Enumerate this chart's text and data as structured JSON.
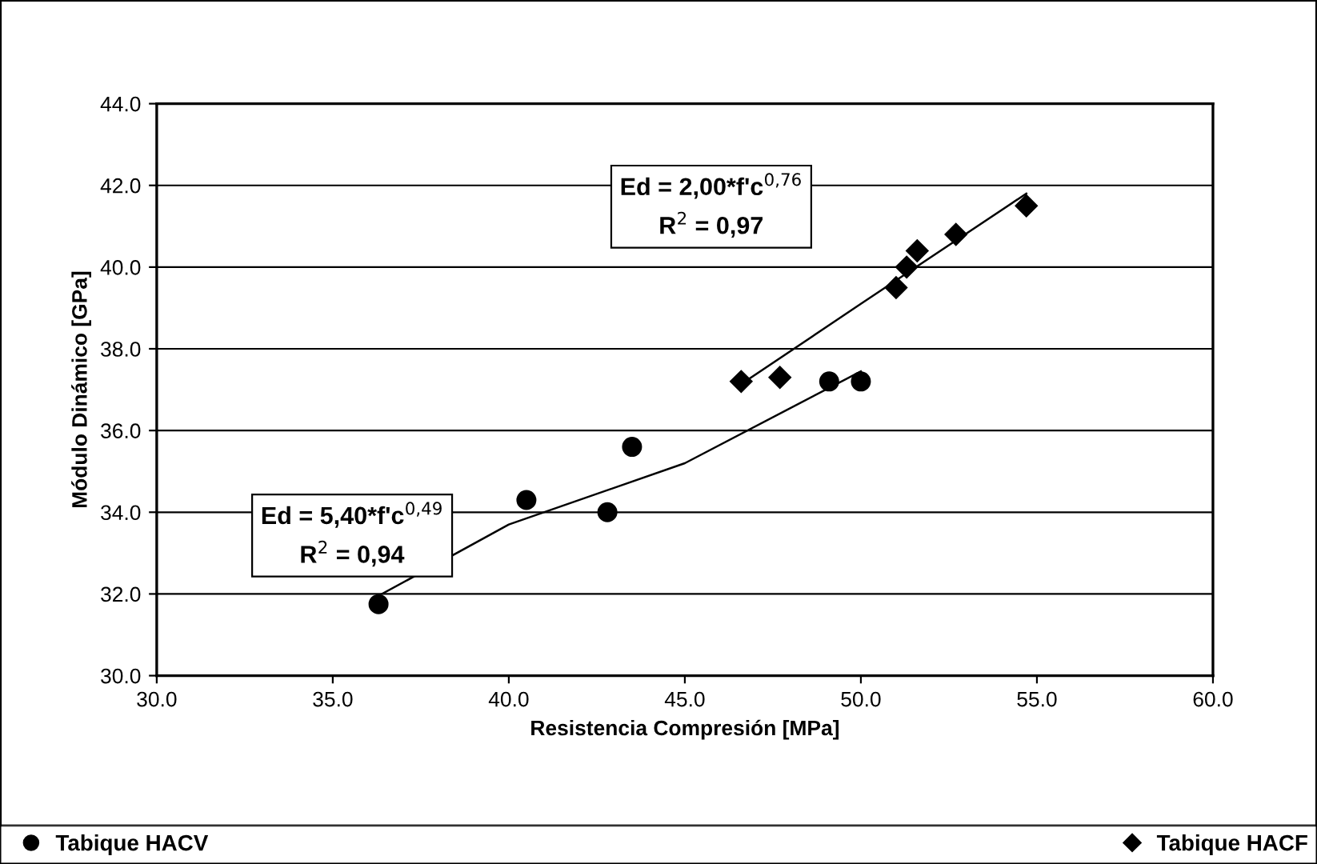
{
  "chart_data": {
    "type": "scatter",
    "xlabel": "Resistencia Compresión [MPa]",
    "ylabel": "Módulo Dinámico [GPa]",
    "xlim": [
      30,
      60
    ],
    "ylim": [
      30,
      44
    ],
    "xticks": [
      {
        "value": 30,
        "label": "30.0"
      },
      {
        "value": 35,
        "label": "35.0"
      },
      {
        "value": 40,
        "label": "40.0"
      },
      {
        "value": 45,
        "label": "45.0"
      },
      {
        "value": 50,
        "label": "50.0"
      },
      {
        "value": 55,
        "label": "55.0"
      },
      {
        "value": 60,
        "label": "60.0"
      }
    ],
    "yticks": [
      {
        "value": 30,
        "label": "30.0"
      },
      {
        "value": 32,
        "label": "32.0"
      },
      {
        "value": 34,
        "label": "34.0"
      },
      {
        "value": 36,
        "label": "36.0"
      },
      {
        "value": 38,
        "label": "38.0"
      },
      {
        "value": 40,
        "label": "40.0"
      },
      {
        "value": 42,
        "label": "42.0"
      },
      {
        "value": 44,
        "label": "44.0"
      }
    ],
    "grid": "y",
    "legend": "bottom",
    "series": [
      {
        "name": "Tabique HACV",
        "marker": "circle",
        "color": "#000000",
        "x": [
          36.3,
          40.5,
          42.8,
          43.5,
          49.1,
          50.0
        ],
        "values": [
          31.75,
          34.3,
          34.0,
          35.6,
          37.2,
          37.2
        ]
      },
      {
        "name": "Tabique HACF",
        "marker": "diamond",
        "color": "#000000",
        "x": [
          46.6,
          47.7,
          51.0,
          51.3,
          51.6,
          52.7,
          54.7
        ],
        "values": [
          37.2,
          37.3,
          39.5,
          40.0,
          40.4,
          40.8,
          41.5
        ]
      },
      {
        "type": "line",
        "marker": "none",
        "color": "#000000",
        "x": [
          36.4,
          40.0,
          45.0,
          50.0
        ],
        "values": [
          32.0,
          33.7,
          35.2,
          37.45
        ]
      },
      {
        "type": "line",
        "marker": "none",
        "color": "#000000",
        "x": [
          46.8,
          50.0,
          54.7
        ],
        "values": [
          37.25,
          39.1,
          41.8
        ]
      }
    ],
    "annotations": [
      "Ed = 5,40*f'c$^{0,49}$\nR$^{2}$ = 0,94",
      "Ed = 2,00*f'c$^{0,76}$\nR$^{2}$ = 0,97"
    ]
  }
}
